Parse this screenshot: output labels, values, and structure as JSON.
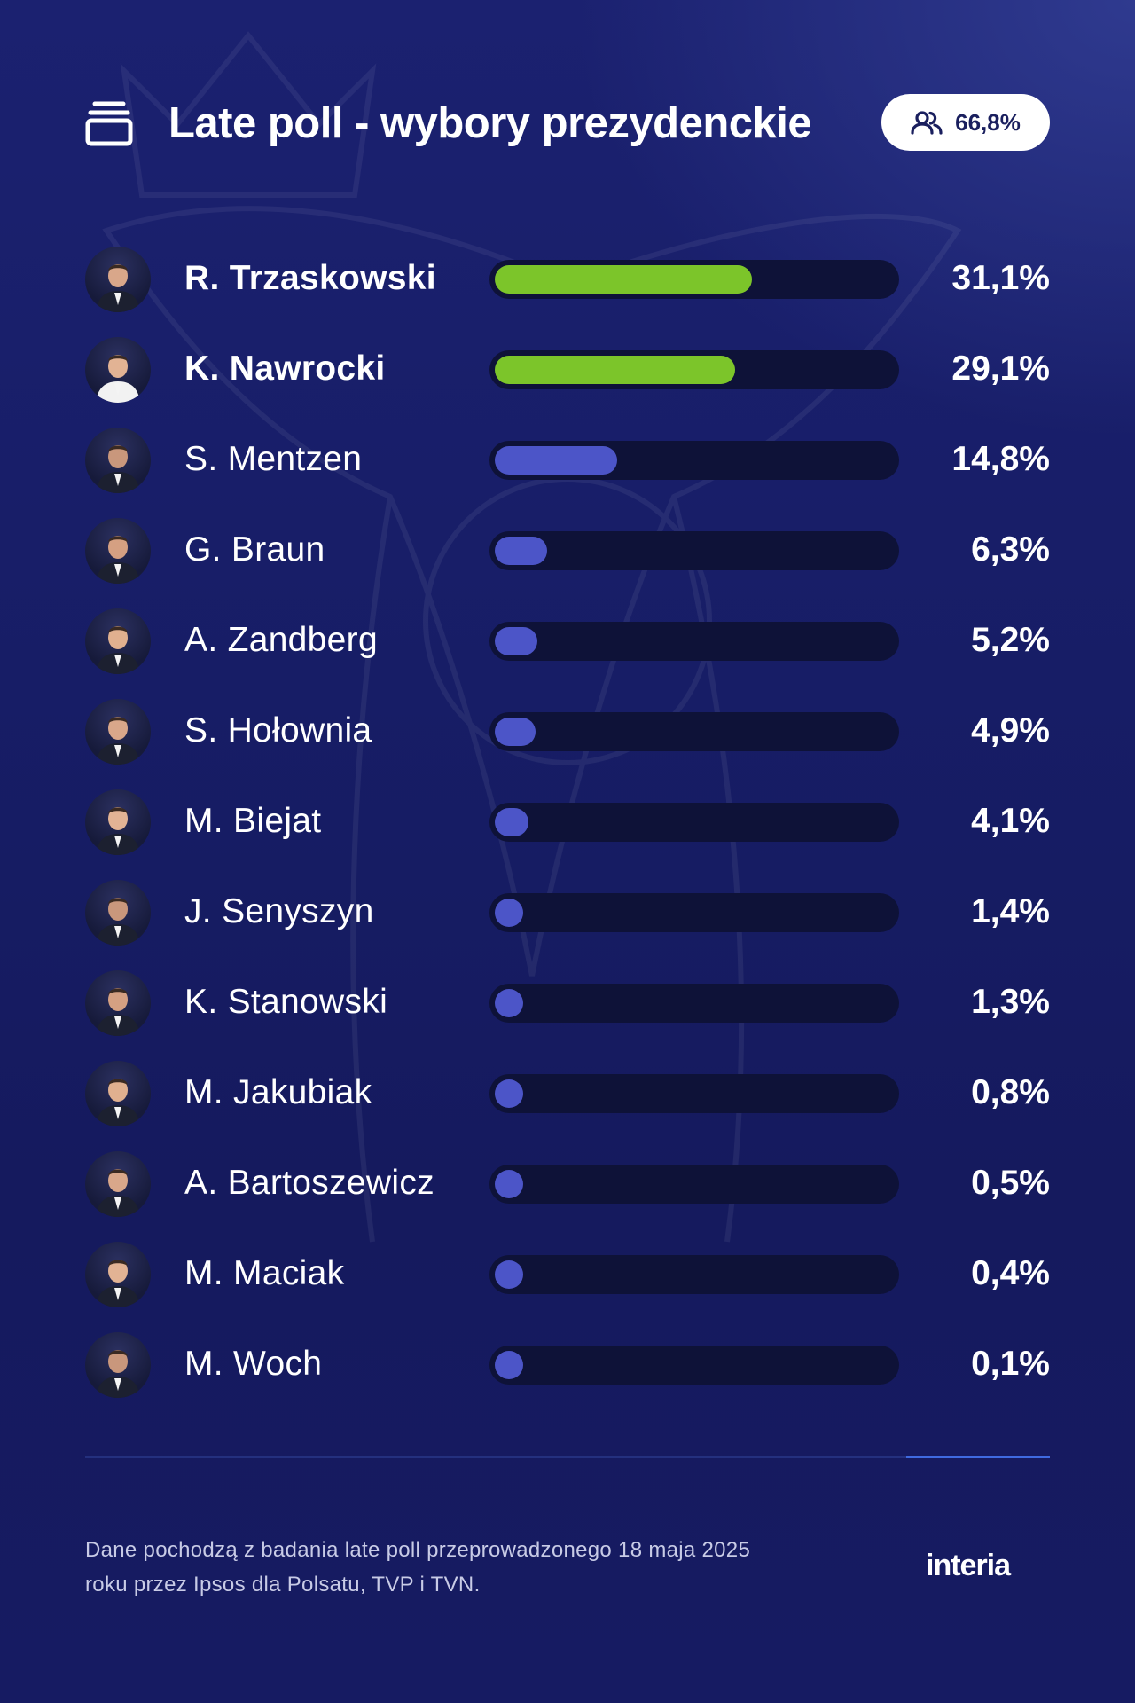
{
  "header": {
    "title": "Late poll - wybory prezydenckie",
    "turnout": "66,8%"
  },
  "chart_data": {
    "type": "bar",
    "orientation": "horizontal",
    "title": "Late poll - wybory prezydenckie",
    "xlim": [
      0,
      100
    ],
    "categories": [
      "R. Trzaskowski",
      "K. Nawrocki",
      "S. Mentzen",
      "G. Braun",
      "A. Zandberg",
      "S. Hołownia",
      "M. Biejat",
      "J. Senyszyn",
      "K. Stanowski",
      "M. Jakubiak",
      "A. Bartoszewicz",
      "M. Maciak",
      "M. Woch"
    ],
    "values": [
      31.1,
      29.1,
      14.8,
      6.3,
      5.2,
      4.9,
      4.1,
      1.4,
      1.3,
      0.8,
      0.5,
      0.4,
      0.1
    ],
    "value_labels": [
      "31,1%",
      "29,1%",
      "14,8%",
      "6,3%",
      "5,2%",
      "4,9%",
      "4,1%",
      "1,4%",
      "1,3%",
      "0,8%",
      "0,5%",
      "0,4%",
      "0,1%"
    ],
    "highlighted": [
      true,
      true,
      false,
      false,
      false,
      false,
      false,
      false,
      false,
      false,
      false,
      false,
      false
    ],
    "colors": {
      "highlight": "#7cc52a",
      "default": "#4c55c8",
      "track": "#0e1238"
    }
  },
  "footer": {
    "note": "Dane pochodzą z badania late poll przeprowadzonego 18 maja 2025 roku przez Ipsos dla Polsatu, TVP i TVN.",
    "logo": "interia"
  }
}
